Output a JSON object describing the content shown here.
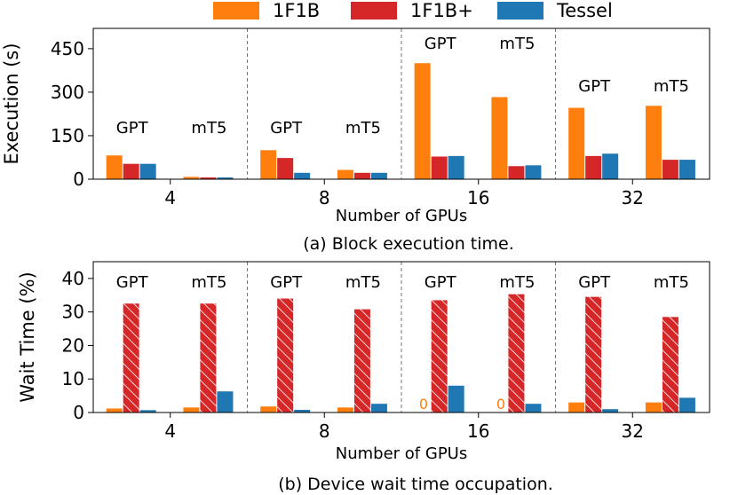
{
  "legend": {
    "items": [
      {
        "label": "1F1B",
        "color": "#ff7f0e"
      },
      {
        "label": "1F1B+",
        "color": "#d62728"
      },
      {
        "label": "Tessel",
        "color": "#1f77b4"
      }
    ]
  },
  "chart_data": [
    {
      "type": "bar",
      "caption": "(a) Block execution time.",
      "xlabel": "Number of GPUs",
      "ylabel": "Execution (s)",
      "ylim": [
        0,
        520
      ],
      "yticks": [
        "0",
        "150",
        "300",
        "450"
      ],
      "ytick_values": [
        0,
        150,
        300,
        450
      ],
      "groups": [
        "4",
        "8",
        "16",
        "32"
      ],
      "subgroups": [
        "GPT",
        "mT5"
      ],
      "series": [
        {
          "name": "1F1B",
          "values": [
            [
              82,
              8
            ],
            [
              100,
              32
            ],
            [
              400,
              283
            ],
            [
              246,
              253
            ]
          ]
        },
        {
          "name": "1F1B+",
          "values": [
            [
              53,
              6
            ],
            [
              73,
              22
            ],
            [
              78,
              45
            ],
            [
              80,
              67
            ]
          ]
        },
        {
          "name": "Tessel",
          "values": [
            [
              53,
              6
            ],
            [
              22,
              22
            ],
            [
              80,
              48
            ],
            [
              88,
              67
            ]
          ]
        }
      ]
    },
    {
      "type": "bar",
      "caption": "(b) Device wait time occupation.",
      "xlabel": "Number of GPUs",
      "ylabel": "Wait Time (%)",
      "ylim": [
        0,
        45
      ],
      "yticks": [
        "0",
        "10",
        "20",
        "30",
        "40"
      ],
      "ytick_values": [
        0,
        10,
        20,
        30,
        40
      ],
      "groups": [
        "4",
        "8",
        "16",
        "32"
      ],
      "subgroups": [
        "GPT",
        "mT5"
      ],
      "hatched_series": "1F1B+",
      "series": [
        {
          "name": "1F1B",
          "values": [
            [
              1.2,
              1.5
            ],
            [
              1.8,
              1.5
            ],
            [
              0,
              0
            ],
            [
              3,
              3
            ]
          ]
        },
        {
          "name": "1F1B+",
          "values": [
            [
              32.5,
              32.5
            ],
            [
              34,
              30.8
            ],
            [
              33.5,
              35.3
            ],
            [
              34.5,
              28.5
            ]
          ]
        },
        {
          "name": "Tessel",
          "values": [
            [
              0.7,
              6.3
            ],
            [
              0.8,
              2.6
            ],
            [
              8,
              2.6
            ],
            [
              1,
              4.4
            ]
          ]
        }
      ],
      "zero_labels": [
        "0",
        "0"
      ]
    }
  ]
}
